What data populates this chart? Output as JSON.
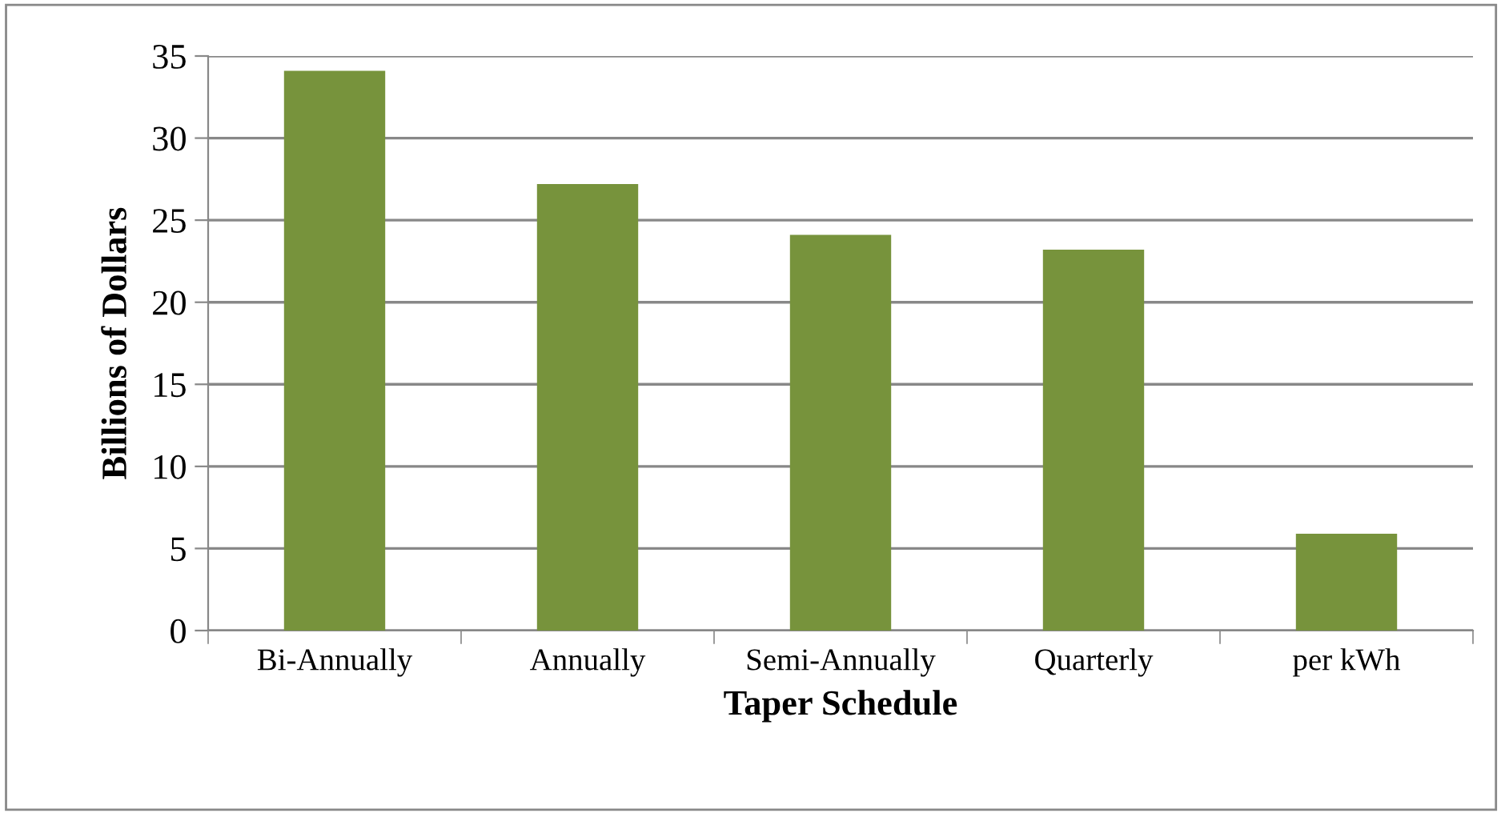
{
  "chart_data": {
    "type": "bar",
    "xlabel": "Taper Schedule",
    "ylabel": "Billions of Dollars",
    "categories": [
      "Bi-Annually",
      "Annually",
      "Semi-Annually",
      "Quarterly",
      "per kWh"
    ],
    "values": [
      34.1,
      27.2,
      24.1,
      23.2,
      5.9
    ],
    "color": "#77933c",
    "ylim": [
      0,
      35
    ],
    "yticks": [
      0,
      5,
      10,
      15,
      20,
      25,
      30,
      35
    ],
    "grid": "y",
    "legend": false
  }
}
